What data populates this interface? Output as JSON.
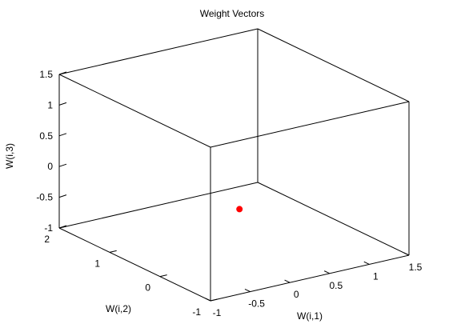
{
  "chart_data": {
    "type": "scatter",
    "projection": "3d",
    "title": "Weight Vectors",
    "xlabel": "W(i,1)",
    "ylabel": "W(i,2)",
    "zlabel": "W(i,3)",
    "xlim": [
      -1,
      1.5
    ],
    "ylim": [
      -1,
      2
    ],
    "zlim": [
      -1,
      1.5
    ],
    "xticks": [
      "-1",
      "-0.5",
      "0",
      "0.5",
      "1",
      "1.5"
    ],
    "yticks": [
      "-1",
      "0",
      "1",
      "2"
    ],
    "zticks": [
      "-1",
      "-0.5",
      "0",
      "0.5",
      "1",
      "1.5"
    ],
    "grid": false,
    "box": true,
    "points": [
      {
        "x": 0,
        "y": 0,
        "z": -0.2
      }
    ],
    "marker_color": "#ff0000"
  }
}
